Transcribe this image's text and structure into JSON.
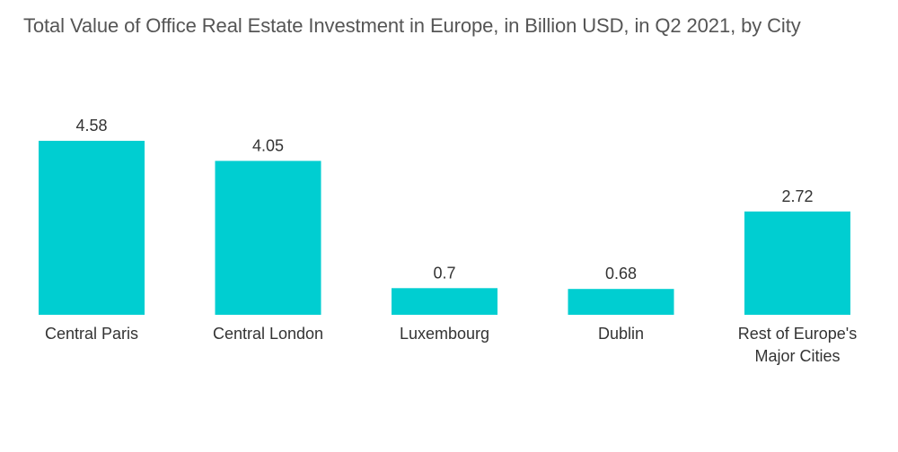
{
  "chart_data": {
    "type": "bar",
    "title": "Total Value of Office Real Estate Investment in Europe, in Billion USD, in Q2 2021, by City",
    "categories": [
      [
        "Central Paris"
      ],
      [
        "Central London"
      ],
      [
        "Luxembourg"
      ],
      [
        "Dublin"
      ],
      [
        "Rest of Europe's",
        "Major Cities"
      ]
    ],
    "values": [
      4.58,
      4.05,
      0.7,
      0.68,
      2.72
    ],
    "value_labels": [
      "4.58",
      "4.05",
      "0.7",
      "0.68",
      "2.72"
    ],
    "xlabel": "",
    "ylabel": "",
    "ylim": [
      0,
      4.58
    ],
    "bar_color": "#00CED1",
    "grid": false,
    "legend": "none"
  }
}
